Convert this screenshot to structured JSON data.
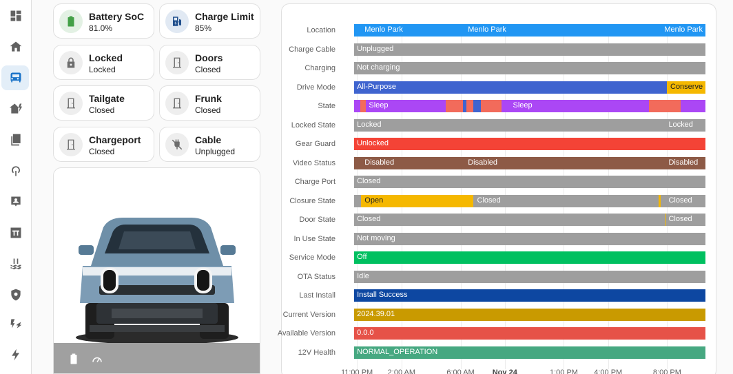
{
  "sidebar": {
    "items": [
      {
        "icon": "dashboard-icon",
        "active": false
      },
      {
        "icon": "home-icon",
        "active": false
      },
      {
        "icon": "bus-icon",
        "active": true
      },
      {
        "icon": "home-lightning-icon",
        "active": false
      },
      {
        "icon": "library-icon",
        "active": false
      },
      {
        "icon": "heat-pump-icon",
        "active": false
      },
      {
        "icon": "contact-card-icon",
        "active": false
      },
      {
        "icon": "pi-icon",
        "active": false
      },
      {
        "icon": "pool-icon",
        "active": false
      },
      {
        "icon": "shield-icon",
        "active": false
      },
      {
        "icon": "transmission-tower-icon",
        "active": false
      },
      {
        "icon": "flash-icon",
        "active": false
      }
    ]
  },
  "tiles": [
    {
      "name": "Battery SoC",
      "state": "81.0%",
      "icon": "battery-icon",
      "icon_color": "#43a047",
      "icon_bg": "#e3f1e4"
    },
    {
      "name": "Charge Limit",
      "state": "85%",
      "icon": "fuel-charge-icon",
      "icon_color": "#1f4e8c",
      "icon_bg": "#e1e9f3"
    },
    {
      "name": "Locked",
      "state": "Locked",
      "icon": "lock-icon",
      "icon_color": "#6d6d6d",
      "icon_bg": "#eeeeee"
    },
    {
      "name": "Doors",
      "state": "Closed",
      "icon": "door-closed-icon",
      "icon_color": "#6d6d6d",
      "icon_bg": "#eeeeee"
    },
    {
      "name": "Tailgate",
      "state": "Closed",
      "icon": "door-closed-icon",
      "icon_color": "#6d6d6d",
      "icon_bg": "#eeeeee"
    },
    {
      "name": "Frunk",
      "state": "Closed",
      "icon": "door-closed-icon",
      "icon_color": "#6d6d6d",
      "icon_bg": "#eeeeee"
    },
    {
      "name": "Chargeport",
      "state": "Closed",
      "icon": "door-closed-icon",
      "icon_color": "#6d6d6d",
      "icon_bg": "#eeeeee"
    },
    {
      "name": "Cable",
      "state": "Unplugged",
      "icon": "power-plug-off-icon",
      "icon_color": "#6d6d6d",
      "icon_bg": "#eeeeee"
    }
  ],
  "vehicle": {
    "image": "rivian-r1t-front-icon",
    "footer_icons": [
      "battery-icon",
      "speedometer-icon"
    ]
  },
  "timeline": {
    "colors": {
      "blue": "#2196f3",
      "grey": "#9e9e9e",
      "indigo": "#3f64cf",
      "amber": "#f5b800",
      "purple": "#ab47f5",
      "salmon": "#f26b5b",
      "red": "#f44336",
      "brown": "#8d5a46",
      "green": "#00c060",
      "darkblue": "#0d47a1",
      "gold": "#c99a00",
      "tomato": "#e65248",
      "teal": "#46a881"
    },
    "ticks": [
      {
        "label": "11:00 PM",
        "x": 0.008,
        "bold": false
      },
      {
        "label": "2:00 AM",
        "x": 0.135,
        "bold": false
      },
      {
        "label": "6:00 AM",
        "x": 0.303,
        "bold": false
      },
      {
        "label": "Nov 24",
        "x": 0.429,
        "bold": true
      },
      {
        "label": "1:00 PM",
        "x": 0.597,
        "bold": false
      },
      {
        "label": "4:00 PM",
        "x": 0.723,
        "bold": false
      },
      {
        "label": "8:00 PM",
        "x": 0.891,
        "bold": false
      }
    ],
    "rows": [
      {
        "label": "Location",
        "segments": [
          {
            "from": 0,
            "to": 1,
            "color": "blue"
          }
        ],
        "texts": [
          {
            "text": "Menlo Park",
            "at": 0.03
          },
          {
            "text": "Menlo Park",
            "at": 0.324
          },
          {
            "text": "Menlo Park",
            "at": 0.883
          }
        ]
      },
      {
        "label": "Charge Cable",
        "segments": [
          {
            "from": 0,
            "to": 1,
            "color": "grey"
          }
        ],
        "texts": [
          {
            "text": "Unplugged",
            "at": 0.008
          }
        ]
      },
      {
        "label": "Charging",
        "segments": [
          {
            "from": 0,
            "to": 1,
            "color": "grey"
          }
        ],
        "texts": [
          {
            "text": "Not charging",
            "at": 0.008
          }
        ]
      },
      {
        "label": "Drive Mode",
        "segments": [
          {
            "from": 0,
            "to": 0.89,
            "color": "indigo"
          },
          {
            "from": 0.89,
            "to": 1,
            "color": "amber"
          }
        ],
        "texts": [
          {
            "text": "All-Purpose",
            "at": 0.008
          },
          {
            "text": "Conserve",
            "at": 0.9,
            "dark": true
          }
        ]
      },
      {
        "label": "State",
        "segments": [
          {
            "from": 0,
            "to": 0.018,
            "color": "purple"
          },
          {
            "from": 0.018,
            "to": 0.034,
            "color": "salmon"
          },
          {
            "from": 0.034,
            "to": 0.26,
            "color": "purple"
          },
          {
            "from": 0.26,
            "to": 0.31,
            "color": "salmon"
          },
          {
            "from": 0.31,
            "to": 0.32,
            "color": "indigo"
          },
          {
            "from": 0.32,
            "to": 0.34,
            "color": "salmon"
          },
          {
            "from": 0.34,
            "to": 0.36,
            "color": "indigo"
          },
          {
            "from": 0.36,
            "to": 0.42,
            "color": "salmon"
          },
          {
            "from": 0.42,
            "to": 0.84,
            "color": "purple"
          },
          {
            "from": 0.84,
            "to": 0.93,
            "color": "salmon"
          },
          {
            "from": 0.93,
            "to": 1,
            "color": "purple"
          }
        ],
        "texts": [
          {
            "text": "Sleep",
            "at": 0.042
          },
          {
            "text": "Sleep",
            "at": 0.452
          }
        ]
      },
      {
        "label": "Locked State",
        "segments": [
          {
            "from": 0,
            "to": 1,
            "color": "grey"
          }
        ],
        "texts": [
          {
            "text": "Locked",
            "at": 0.008
          },
          {
            "text": "Locked",
            "at": 0.895
          }
        ]
      },
      {
        "label": "Gear Guard",
        "segments": [
          {
            "from": 0,
            "to": 1,
            "color": "red"
          }
        ],
        "texts": [
          {
            "text": "Unlocked",
            "at": 0.008
          }
        ]
      },
      {
        "label": "Video Status",
        "segments": [
          {
            "from": 0,
            "to": 1,
            "color": "brown"
          }
        ],
        "texts": [
          {
            "text": "Disabled",
            "at": 0.03
          },
          {
            "text": "Disabled",
            "at": 0.324
          },
          {
            "text": "Disabled",
            "at": 0.895
          }
        ]
      },
      {
        "label": "Charge Port",
        "segments": [
          {
            "from": 0,
            "to": 1,
            "color": "grey"
          }
        ],
        "texts": [
          {
            "text": "Closed",
            "at": 0.008
          }
        ]
      },
      {
        "label": "Closure State",
        "segments": [
          {
            "from": 0,
            "to": 0.02,
            "color": "grey"
          },
          {
            "from": 0.02,
            "to": 0.34,
            "color": "amber"
          },
          {
            "from": 0.34,
            "to": 0.866,
            "color": "grey"
          },
          {
            "from": 0.866,
            "to": 0.872,
            "color": "amber"
          },
          {
            "from": 0.872,
            "to": 1,
            "color": "grey"
          }
        ],
        "texts": [
          {
            "text": "Open",
            "at": 0.03,
            "dark": true
          },
          {
            "text": "Closed",
            "at": 0.35
          },
          {
            "text": "Closed",
            "at": 0.895
          }
        ]
      },
      {
        "label": "Door State",
        "segments": [
          {
            "from": 0,
            "to": 0.887,
            "color": "grey"
          },
          {
            "from": 0.887,
            "to": 0.889,
            "color": "amber"
          },
          {
            "from": 0.889,
            "to": 1,
            "color": "grey"
          }
        ],
        "texts": [
          {
            "text": "Closed",
            "at": 0.008
          },
          {
            "text": "Closed",
            "at": 0.895
          }
        ]
      },
      {
        "label": "In Use State",
        "segments": [
          {
            "from": 0,
            "to": 1,
            "color": "grey"
          }
        ],
        "texts": [
          {
            "text": "Not moving",
            "at": 0.008
          }
        ]
      },
      {
        "label": "Service Mode",
        "segments": [
          {
            "from": 0,
            "to": 1,
            "color": "green"
          }
        ],
        "texts": [
          {
            "text": "Off",
            "at": 0.008
          }
        ]
      },
      {
        "label": "OTA Status",
        "segments": [
          {
            "from": 0,
            "to": 1,
            "color": "grey"
          }
        ],
        "texts": [
          {
            "text": "Idle",
            "at": 0.008
          }
        ]
      },
      {
        "label": "Last Install",
        "segments": [
          {
            "from": 0,
            "to": 1,
            "color": "darkblue"
          }
        ],
        "texts": [
          {
            "text": "Install Success",
            "at": 0.008
          }
        ]
      },
      {
        "label": "Current Version",
        "segments": [
          {
            "from": 0,
            "to": 1,
            "color": "gold"
          }
        ],
        "texts": [
          {
            "text": "2024.39.01",
            "at": 0.008
          }
        ]
      },
      {
        "label": "Available Version",
        "segments": [
          {
            "from": 0,
            "to": 1,
            "color": "tomato"
          }
        ],
        "texts": [
          {
            "text": "0.0.0",
            "at": 0.008
          }
        ]
      },
      {
        "label": "12V Health",
        "segments": [
          {
            "from": 0,
            "to": 1,
            "color": "teal"
          }
        ],
        "texts": [
          {
            "text": "NORMAL_OPERATION",
            "at": 0.008
          }
        ]
      }
    ]
  }
}
